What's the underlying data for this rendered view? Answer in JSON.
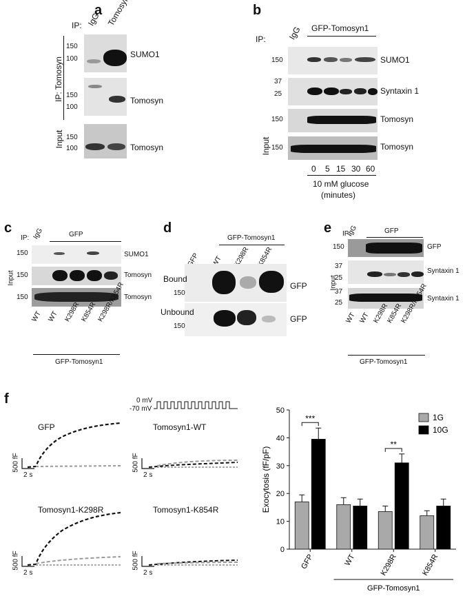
{
  "panel_a": {
    "label": "a",
    "ip_prefix": "IP:",
    "lanes": [
      "IgG",
      "Tomosyn"
    ],
    "side_ip": "IP: Tomosyn",
    "side_input": "Input",
    "blots": [
      {
        "name": "SUMO1",
        "ticks": [
          "150",
          "100"
        ]
      },
      {
        "name": "Tomosyn",
        "ticks": [
          "150",
          "100"
        ]
      },
      {
        "name": "Tomosyn",
        "ticks": [
          "150",
          "100"
        ]
      }
    ]
  },
  "panel_b": {
    "label": "b",
    "ip_prefix": "IP:",
    "lane_igg": "IgG",
    "group": "GFP-Tomosyn1",
    "side_input": "Input",
    "blots": [
      {
        "name": "SUMO1",
        "ticks": [
          "150"
        ]
      },
      {
        "name": "Syntaxin 1",
        "ticks": [
          "37",
          "25"
        ]
      },
      {
        "name": "Tomosyn",
        "ticks": [
          "150"
        ]
      },
      {
        "name": "Tomosyn",
        "ticks": [
          "150"
        ]
      }
    ],
    "times": [
      "0",
      "5",
      "15",
      "30",
      "60"
    ],
    "glucose_line1": "10 mM glucose",
    "glucose_line2": "(minutes)"
  },
  "panel_c": {
    "label": "c",
    "ip_prefix": "IP:",
    "lane_igg": "IgG",
    "group": "GFP",
    "side_input": "Input",
    "blots": [
      {
        "name": "SUMO1",
        "ticks": [
          "150"
        ]
      },
      {
        "name": "Tomosyn",
        "ticks": [
          "150"
        ]
      },
      {
        "name": "Tomosyn",
        "ticks": [
          "150"
        ]
      }
    ],
    "lanes": [
      "WT",
      "WT",
      "K298R",
      "K854R",
      "K298R/K854R"
    ],
    "footer": "GFP-Tomosyn1"
  },
  "panel_d": {
    "label": "d",
    "group": "GFP-Tomosyn1",
    "lanes": [
      "GFP",
      "WT",
      "K298R",
      "K854R"
    ],
    "rows": [
      {
        "name": "Bound",
        "tick": "150",
        "right": "GFP"
      },
      {
        "name": "Unbound",
        "tick": "150",
        "right": "GFP"
      }
    ]
  },
  "panel_e": {
    "label": "e",
    "ip_prefix": "IP:",
    "lane_igg": "IgG",
    "group": "GFP",
    "side_input": "Input",
    "blots": [
      {
        "name": "GFP",
        "ticks": [
          "150"
        ]
      },
      {
        "name": "Syntaxin 1",
        "ticks": [
          "37",
          "25"
        ]
      },
      {
        "name": "Syntaxin 1",
        "ticks": [
          "37",
          "25"
        ]
      }
    ],
    "lanes": [
      "WT",
      "WT",
      "K298R",
      "K854R",
      "K298R/K854R"
    ],
    "footer": "GFP-Tomosyn1"
  },
  "panel_f": {
    "label": "f",
    "protocol": {
      "top": "0 mV",
      "bottom": "-70 mV"
    },
    "traces": [
      {
        "title": "GFP",
        "ybar": "500 fF",
        "xbar": "2 s"
      },
      {
        "title": "Tomosyn1-WT",
        "ybar": "500 fF",
        "xbar": "2 s"
      },
      {
        "title": "Tomosyn1-K298R",
        "ybar": "500 fF",
        "xbar": "2 s"
      },
      {
        "title": "Tomosyn1-K854R",
        "ybar": "500 fF",
        "xbar": "2 s"
      }
    ]
  },
  "chart_data": {
    "type": "bar",
    "ylabel": "Exocytosis (fF/pF)",
    "xlabel": "",
    "ylim": [
      0,
      50
    ],
    "yticks": [
      0,
      10,
      20,
      30,
      40,
      50
    ],
    "categories": [
      "GFP",
      "WT",
      "K298R",
      "K854R"
    ],
    "group_label": "GFP-Tomosyn1",
    "series": [
      {
        "name": "1G",
        "color": "#a9a9a9",
        "values": [
          17,
          16,
          13.5,
          12
        ],
        "errors": [
          2.5,
          2.5,
          2,
          1.8
        ]
      },
      {
        "name": "10G",
        "color": "#000000",
        "values": [
          39.5,
          15.5,
          31,
          15.5
        ],
        "errors": [
          4,
          2.5,
          3.2,
          2.5
        ]
      }
    ],
    "significance": [
      {
        "category": "GFP",
        "label": "***"
      },
      {
        "category": "K298R",
        "label": "**"
      }
    ],
    "legend": "top-right"
  }
}
